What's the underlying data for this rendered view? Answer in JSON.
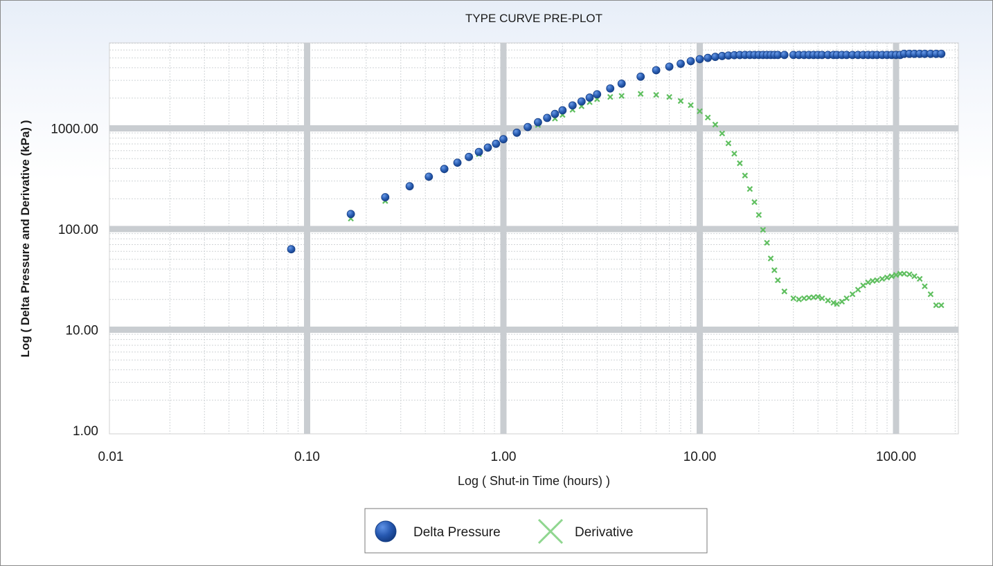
{
  "chart_data": {
    "type": "scatter",
    "title": "TYPE CURVE PRE-PLOT",
    "xlabel": "Log ( Shut-in Time (hours) )",
    "ylabel": "Log ( Delta Pressure and Derivative (kPa) )",
    "x_scale": "log",
    "y_scale": "log",
    "xlim": [
      0.01,
      200
    ],
    "ylim": [
      1,
      7000
    ],
    "x_ticks": [
      0.01,
      0.1,
      1,
      10,
      100
    ],
    "x_tick_labels": [
      "0.01",
      "0.10",
      "1.00",
      "10.00",
      "100.00"
    ],
    "y_ticks": [
      1,
      10,
      100,
      1000
    ],
    "y_tick_labels": [
      "1.00",
      "10.00",
      "100.00",
      "1000.00"
    ],
    "grid": true,
    "legend_position": "bottom",
    "colors": {
      "delta_pressure": "#2b5fb4",
      "derivative": "#6cc46c",
      "grid_major": "#c9cdd1",
      "grid_minor": "#d5d8db"
    },
    "series": [
      {
        "name": "Delta Pressure",
        "marker": "circle",
        "x": [
          0.083,
          0.167,
          0.25,
          0.333,
          0.417,
          0.5,
          0.583,
          0.667,
          0.75,
          0.833,
          0.917,
          1.0,
          1.17,
          1.33,
          1.5,
          1.67,
          1.83,
          2.0,
          2.25,
          2.5,
          2.75,
          3.0,
          3.5,
          4.0,
          5.0,
          6.0,
          7.0,
          8.0,
          9.0,
          10.0,
          11.0,
          12.0,
          13.0,
          14.0,
          15.0,
          16.0,
          17.0,
          18.0,
          19.0,
          20.0,
          21.0,
          22.0,
          23.0,
          24.0,
          25.0,
          27.0,
          30.0,
          32.0,
          34.0,
          36.0,
          38.0,
          40.0,
          42.0,
          45.0,
          48.0,
          50.0,
          53.0,
          56.0,
          60.0,
          64.0,
          68.0,
          72.0,
          76.0,
          80.0,
          85.0,
          90.0,
          95.0,
          100.0,
          105.0,
          110.0,
          117.0,
          124.0,
          132.0,
          140.0,
          150.0,
          160.0,
          170.0
        ],
        "y": [
          63,
          141,
          207,
          266,
          331,
          395,
          456,
          520,
          583,
          644,
          703,
          780,
          905,
          1030,
          1150,
          1270,
          1390,
          1510,
          1690,
          1850,
          2020,
          2180,
          2490,
          2780,
          3260,
          3780,
          4100,
          4380,
          4650,
          4870,
          5010,
          5130,
          5230,
          5290,
          5330,
          5350,
          5360,
          5360,
          5360,
          5360,
          5360,
          5360,
          5360,
          5360,
          5360,
          5360,
          5360,
          5360,
          5360,
          5360,
          5360,
          5360,
          5360,
          5360,
          5360,
          5360,
          5360,
          5360,
          5360,
          5360,
          5360,
          5360,
          5360,
          5360,
          5360,
          5360,
          5360,
          5360,
          5360,
          5500,
          5500,
          5500,
          5500,
          5500,
          5500,
          5500,
          5500
        ]
      },
      {
        "name": "Derivative",
        "marker": "x",
        "x": [
          0.167,
          0.25,
          0.75,
          1.5,
          1.83,
          2.0,
          2.25,
          2.5,
          2.75,
          3.0,
          3.5,
          4.0,
          5.0,
          6.0,
          7.0,
          8.0,
          9.0,
          10.0,
          11.0,
          12.0,
          13.0,
          14.0,
          15.0,
          16.0,
          17.0,
          18.0,
          19.0,
          20.0,
          21.0,
          22.0,
          23.0,
          24.0,
          25.0,
          27.0,
          30.0,
          32.0,
          34.0,
          36.0,
          38.0,
          40.0,
          42.0,
          45.0,
          48.0,
          50.0,
          53.0,
          56.0,
          60.0,
          64.0,
          68.0,
          72.0,
          76.0,
          80.0,
          85.0,
          90.0,
          95.0,
          100.0,
          105.0,
          110.0,
          117.0,
          124.0,
          132.0,
          140.0,
          150.0,
          160.0,
          170.0
        ],
        "y": [
          127,
          190,
          555,
          1080,
          1250,
          1360,
          1530,
          1660,
          1820,
          1950,
          2050,
          2100,
          2200,
          2150,
          2050,
          1870,
          1700,
          1480,
          1280,
          1090,
          890,
          710,
          560,
          450,
          340,
          250,
          185,
          138,
          98,
          73,
          51,
          39,
          31,
          24,
          20.5,
          20,
          20.5,
          20.8,
          21,
          21.2,
          20.5,
          19.5,
          18.5,
          18,
          19,
          20.5,
          22.5,
          25,
          27.5,
          29.5,
          30.5,
          31,
          32,
          33,
          34,
          35,
          36,
          36,
          35.5,
          34,
          32,
          27,
          22.5,
          17.5,
          17.5
        ]
      }
    ]
  },
  "legend": {
    "items": [
      {
        "label": "Delta Pressure",
        "icon": "circle-marker-icon"
      },
      {
        "label": "Derivative",
        "icon": "x-marker-icon"
      }
    ]
  }
}
